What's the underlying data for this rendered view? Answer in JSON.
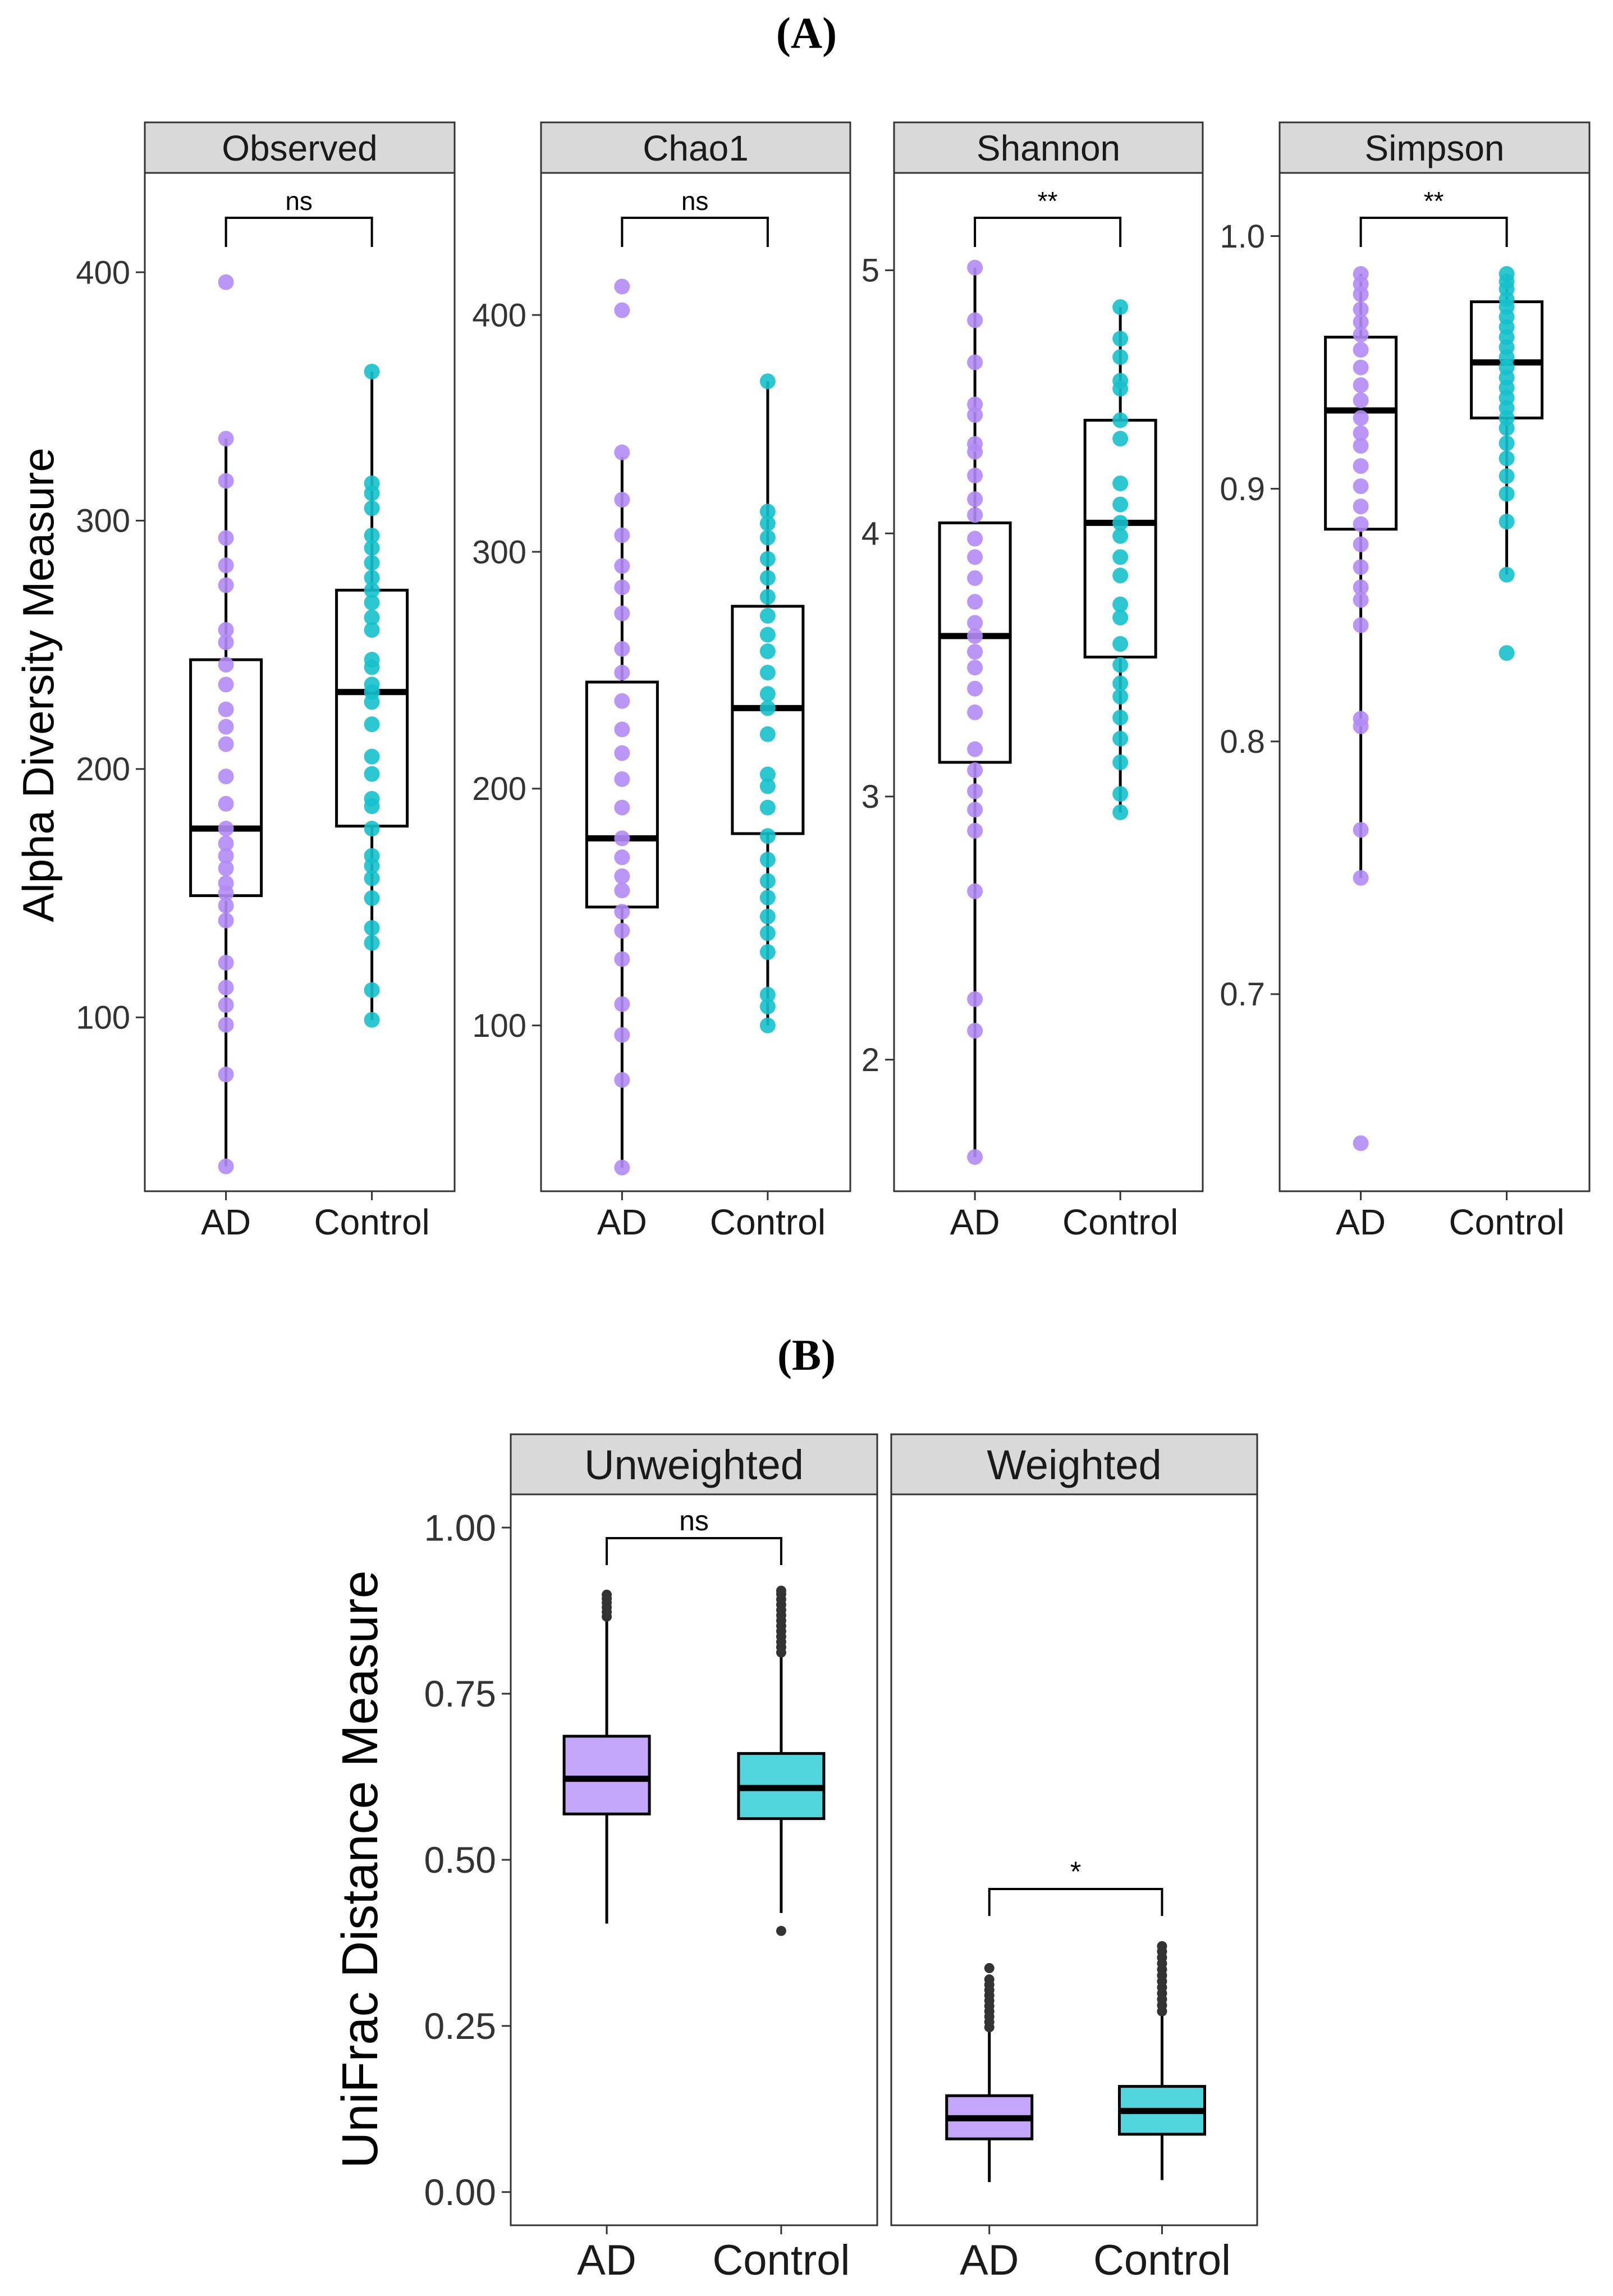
{
  "colors": {
    "ad": "#b28cf5",
    "control": "#16c1cc",
    "ad_fill": "#c4a6fb",
    "control_fill": "#52d4dd",
    "strip": "#d9d9d9",
    "frame": "#333333",
    "outlier": "#333333"
  },
  "labels": {
    "panel_a": "(A)",
    "panel_b": "(B)",
    "a_ylabel": "Alpha Diversity Measure",
    "b_ylabel": "UniFrac Distance Measure"
  },
  "chart_data": [
    {
      "type": "box",
      "panel": "A",
      "title": "Observed",
      "categories": [
        "AD",
        "Control"
      ],
      "ylim": [
        30,
        440
      ],
      "yticks": [
        "100",
        "200",
        "300",
        "400"
      ],
      "ytick_values": [
        100,
        200,
        300,
        400
      ],
      "boxes": [
        {
          "name": "AD",
          "q1": 149,
          "median": 176,
          "q3": 244,
          "whisker_low": 40,
          "whisker_high": 333
        },
        {
          "name": "Control",
          "q1": 177,
          "median": 231,
          "q3": 272,
          "whisker_low": 99,
          "whisker_high": 360
        }
      ],
      "points": {
        "AD": [
          396,
          333,
          316,
          293,
          282,
          274,
          256,
          251,
          242,
          234,
          224,
          217,
          210,
          197,
          186,
          176,
          170,
          165,
          160,
          154,
          150,
          145,
          139,
          122,
          112,
          105,
          97,
          77,
          40
        ],
        "Control": [
          360,
          315,
          311,
          305,
          294,
          289,
          283,
          277,
          272,
          267,
          261,
          256,
          244,
          241,
          234,
          231,
          227,
          218,
          205,
          198,
          188,
          185,
          176,
          165,
          161,
          156,
          148,
          136,
          130,
          111,
          99
        ]
      },
      "significance": "ns"
    },
    {
      "type": "box",
      "panel": "A",
      "title": "Chao1",
      "categories": [
        "AD",
        "Control"
      ],
      "ylim": [
        30,
        460
      ],
      "yticks": [
        "100",
        "200",
        "300",
        "400"
      ],
      "ytick_values": [
        100,
        200,
        300,
        400
      ],
      "boxes": [
        {
          "name": "AD",
          "q1": 150,
          "median": 179,
          "q3": 245,
          "whisker_low": 40,
          "whisker_high": 340
        },
        {
          "name": "Control",
          "q1": 181,
          "median": 234,
          "q3": 277,
          "whisker_low": 100,
          "whisker_high": 372
        }
      ],
      "points": {
        "AD": [
          412,
          402,
          342,
          322,
          307,
          294,
          285,
          274,
          259,
          249,
          237,
          225,
          215,
          204,
          192,
          179,
          171,
          163,
          157,
          148,
          140,
          128,
          109,
          96,
          77,
          40
        ],
        "Control": [
          372,
          317,
          312,
          306,
          297,
          289,
          281,
          273,
          265,
          258,
          249,
          240,
          234,
          223,
          206,
          201,
          192,
          180,
          170,
          161,
          154,
          146,
          139,
          131,
          113,
          108,
          100
        ]
      },
      "significance": "ns"
    },
    {
      "type": "box",
      "panel": "A",
      "title": "Shannon",
      "categories": [
        "AD",
        "Control"
      ],
      "ylim": [
        1.5,
        5.37
      ],
      "yticks": [
        "2",
        "3",
        "4",
        "5"
      ],
      "ytick_values": [
        2,
        3,
        4,
        5
      ],
      "boxes": [
        {
          "name": "AD",
          "q1": 3.13,
          "median": 3.61,
          "q3": 4.04,
          "whisker_low": 1.63,
          "whisker_high": 5.01
        },
        {
          "name": "Control",
          "q1": 3.53,
          "median": 4.04,
          "q3": 4.43,
          "whisker_low": 2.94,
          "whisker_high": 4.86
        }
      ],
      "points": {
        "AD": [
          5.01,
          4.81,
          4.65,
          4.49,
          4.45,
          4.34,
          4.31,
          4.22,
          4.13,
          4.07,
          3.98,
          3.91,
          3.83,
          3.74,
          3.66,
          3.61,
          3.55,
          3.49,
          3.41,
          3.32,
          3.18,
          3.1,
          3.02,
          2.95,
          2.87,
          2.64,
          2.23,
          2.11,
          1.63
        ],
        "Control": [
          4.86,
          4.74,
          4.67,
          4.58,
          4.55,
          4.43,
          4.36,
          4.19,
          4.11,
          4.04,
          3.99,
          3.91,
          3.84,
          3.73,
          3.68,
          3.58,
          3.5,
          3.43,
          3.38,
          3.3,
          3.22,
          3.13,
          3.01,
          2.94
        ]
      },
      "significance": "**"
    },
    {
      "type": "box",
      "panel": "A",
      "title": "Simpson",
      "categories": [
        "AD",
        "Control"
      ],
      "ylim": [
        0.622,
        1.025
      ],
      "yticks": [
        "0.7",
        "0.8",
        "0.9",
        "1.0"
      ],
      "ytick_values": [
        0.7,
        0.8,
        0.9,
        1.0
      ],
      "boxes": [
        {
          "name": "AD",
          "q1": 0.884,
          "median": 0.931,
          "q3": 0.96,
          "whisker_low": 0.746,
          "whisker_high": 0.985
        },
        {
          "name": "Control",
          "q1": 0.928,
          "median": 0.95,
          "q3": 0.974,
          "whisker_low": 0.866,
          "whisker_high": 0.985
        }
      ],
      "points": {
        "AD": [
          0.985,
          0.981,
          0.977,
          0.971,
          0.966,
          0.961,
          0.955,
          0.948,
          0.941,
          0.935,
          0.928,
          0.922,
          0.917,
          0.909,
          0.901,
          0.893,
          0.886,
          0.878,
          0.869,
          0.861,
          0.856,
          0.846,
          0.809,
          0.806,
          0.765,
          0.746,
          0.641
        ],
        "Control": [
          0.985,
          0.982,
          0.979,
          0.975,
          0.972,
          0.968,
          0.964,
          0.96,
          0.956,
          0.952,
          0.948,
          0.944,
          0.94,
          0.936,
          0.932,
          0.928,
          0.924,
          0.918,
          0.912,
          0.905,
          0.898,
          0.887,
          0.866,
          0.835
        ]
      },
      "significance": "**"
    },
    {
      "type": "box",
      "panel": "B",
      "title": "Unweighted",
      "categories": [
        "AD",
        "Control"
      ],
      "ylim": [
        -0.05,
        1.05
      ],
      "yticks": [
        "0.00",
        "0.25",
        "0.50",
        "0.75",
        "1.00"
      ],
      "ytick_values": [
        0,
        0.25,
        0.5,
        0.75,
        1.0
      ],
      "boxes": [
        {
          "name": "AD",
          "q1": 0.569,
          "median": 0.622,
          "q3": 0.686,
          "whisker_low": 0.404,
          "whisker_high": 0.859
        },
        {
          "name": "Control",
          "q1": 0.562,
          "median": 0.608,
          "q3": 0.66,
          "whisker_low": 0.42,
          "whisker_high": 0.805
        }
      ],
      "outliers": {
        "AD": [
          0.866,
          0.873,
          0.88,
          0.887,
          0.893,
          0.899
        ],
        "Control": [
          0.393,
          0.812,
          0.82,
          0.828,
          0.836,
          0.844,
          0.852,
          0.86,
          0.868,
          0.876,
          0.884,
          0.892,
          0.9,
          0.905
        ]
      },
      "significance": "ns"
    },
    {
      "type": "box",
      "panel": "B",
      "title": "Weighted",
      "categories": [
        "AD",
        "Control"
      ],
      "ylim": [
        -0.05,
        1.05
      ],
      "yticks": [
        "0.00",
        "0.25",
        "0.50",
        "0.75",
        "1.00"
      ],
      "ytick_values": [
        0,
        0.25,
        0.5,
        0.75,
        1.0
      ],
      "boxes": [
        {
          "name": "AD",
          "q1": 0.08,
          "median": 0.111,
          "q3": 0.145,
          "whisker_low": 0.015,
          "whisker_high": 0.242
        },
        {
          "name": "Control",
          "q1": 0.087,
          "median": 0.122,
          "q3": 0.159,
          "whisker_low": 0.018,
          "whisker_high": 0.265
        }
      ],
      "outliers": {
        "AD": [
          0.248,
          0.256,
          0.264,
          0.272,
          0.28,
          0.288,
          0.296,
          0.304,
          0.312,
          0.32,
          0.337
        ],
        "Control": [
          0.272,
          0.281,
          0.29,
          0.299,
          0.308,
          0.317,
          0.326,
          0.335,
          0.344,
          0.353,
          0.362,
          0.37
        ]
      },
      "significance": "*"
    }
  ]
}
